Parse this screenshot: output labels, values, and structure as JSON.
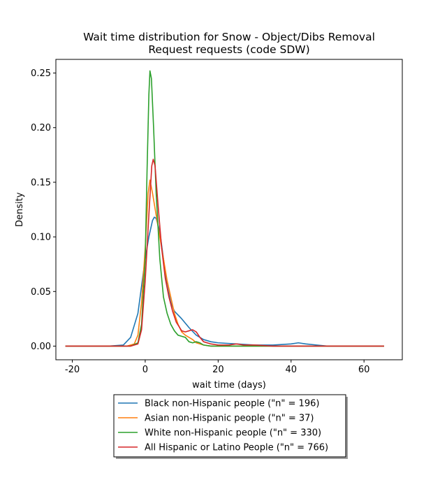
{
  "chart_data": {
    "type": "line",
    "title": [
      "Wait time distribution  for Snow - Object/Dibs Removal",
      "Request requests (code SDW)"
    ],
    "xlabel": "wait time (days)",
    "ylabel": "Density",
    "xlim": [
      -24.5,
      70.5
    ],
    "ylim": [
      -0.0125,
      0.2625
    ],
    "xticks": [
      -20,
      0,
      20,
      40,
      60
    ],
    "yticks": [
      0.0,
      0.05,
      0.1,
      0.15,
      0.2,
      0.25
    ],
    "ytick_labels": [
      "0.00",
      "0.05",
      "0.10",
      "0.15",
      "0.20",
      "0.25"
    ],
    "grid": false,
    "legend_placement": "below plot, center",
    "series": [
      {
        "name": "Black non-Hispanic people (\"n\" = 196)",
        "color": "#1f77b4",
        "points": [
          [
            -21.9,
            0.0
          ],
          [
            -10,
            0.0
          ],
          [
            -6,
            0.001
          ],
          [
            -4,
            0.008
          ],
          [
            -2,
            0.03
          ],
          [
            -1,
            0.055
          ],
          [
            0,
            0.08
          ],
          [
            1,
            0.1
          ],
          [
            2,
            0.115
          ],
          [
            2.5,
            0.118
          ],
          [
            3,
            0.117
          ],
          [
            4,
            0.105
          ],
          [
            5,
            0.08
          ],
          [
            6,
            0.055
          ],
          [
            7,
            0.04
          ],
          [
            8,
            0.032
          ],
          [
            10,
            0.025
          ],
          [
            12,
            0.017
          ],
          [
            14,
            0.01
          ],
          [
            16,
            0.006
          ],
          [
            18,
            0.004
          ],
          [
            20,
            0.003
          ],
          [
            25,
            0.002
          ],
          [
            30,
            0.001
          ],
          [
            35,
            0.001
          ],
          [
            40,
            0.002
          ],
          [
            42,
            0.003
          ],
          [
            44,
            0.002
          ],
          [
            47,
            0.001
          ],
          [
            50,
            0.0
          ],
          [
            65.5,
            0.0
          ]
        ]
      },
      {
        "name": "Asian non-Hispanic people (\"n\" = 37)",
        "color": "#ff7f0e",
        "points": [
          [
            -21.9,
            0.0
          ],
          [
            -5,
            0.0
          ],
          [
            -3,
            0.002
          ],
          [
            -2,
            0.01
          ],
          [
            -1,
            0.04
          ],
          [
            0,
            0.09
          ],
          [
            0.8,
            0.14
          ],
          [
            1.3,
            0.152
          ],
          [
            2,
            0.14
          ],
          [
            3,
            0.12
          ],
          [
            4,
            0.1
          ],
          [
            5,
            0.08
          ],
          [
            6,
            0.06
          ],
          [
            7,
            0.045
          ],
          [
            8,
            0.03
          ],
          [
            9,
            0.02
          ],
          [
            10,
            0.013
          ],
          [
            11,
            0.01
          ],
          [
            12,
            0.008
          ],
          [
            13,
            0.006
          ],
          [
            14,
            0.003
          ],
          [
            16,
            0.001
          ],
          [
            18,
            0.0
          ],
          [
            65.5,
            0.0
          ]
        ]
      },
      {
        "name": "White non-Hispanic people (\"n\" = 330)",
        "color": "#2ca02c",
        "points": [
          [
            -21.9,
            0.0
          ],
          [
            -4,
            0.0
          ],
          [
            -2,
            0.003
          ],
          [
            -1,
            0.02
          ],
          [
            0,
            0.08
          ],
          [
            0.5,
            0.16
          ],
          [
            1,
            0.23
          ],
          [
            1.3,
            0.252
          ],
          [
            1.7,
            0.245
          ],
          [
            2.3,
            0.2
          ],
          [
            3,
            0.14
          ],
          [
            4,
            0.08
          ],
          [
            5,
            0.045
          ],
          [
            6,
            0.03
          ],
          [
            7,
            0.02
          ],
          [
            8,
            0.014
          ],
          [
            9,
            0.01
          ],
          [
            10,
            0.009
          ],
          [
            11,
            0.008
          ],
          [
            12,
            0.004
          ],
          [
            13,
            0.003
          ],
          [
            14,
            0.004
          ],
          [
            15,
            0.003
          ],
          [
            16,
            0.001
          ],
          [
            18,
            0.0
          ],
          [
            65.5,
            0.0
          ]
        ]
      },
      {
        "name": "All Hispanic or Latino People (\"n\" = 766)",
        "color": "#d62728",
        "points": [
          [
            -21.9,
            0.0
          ],
          [
            -4,
            0.0
          ],
          [
            -2,
            0.002
          ],
          [
            -1,
            0.015
          ],
          [
            0,
            0.06
          ],
          [
            1,
            0.12
          ],
          [
            1.8,
            0.165
          ],
          [
            2.2,
            0.171
          ],
          [
            2.7,
            0.165
          ],
          [
            3.5,
            0.13
          ],
          [
            4.5,
            0.09
          ],
          [
            5.5,
            0.062
          ],
          [
            6.5,
            0.045
          ],
          [
            7.5,
            0.032
          ],
          [
            8.5,
            0.022
          ],
          [
            10,
            0.014
          ],
          [
            11,
            0.013
          ],
          [
            12,
            0.014
          ],
          [
            13,
            0.015
          ],
          [
            14,
            0.013
          ],
          [
            15,
            0.008
          ],
          [
            16,
            0.004
          ],
          [
            18,
            0.002
          ],
          [
            20,
            0.001
          ],
          [
            23,
            0.001
          ],
          [
            25,
            0.002
          ],
          [
            27,
            0.001
          ],
          [
            30,
            0.001
          ],
          [
            35,
            0.0
          ],
          [
            65.5,
            0.0
          ]
        ]
      }
    ]
  }
}
